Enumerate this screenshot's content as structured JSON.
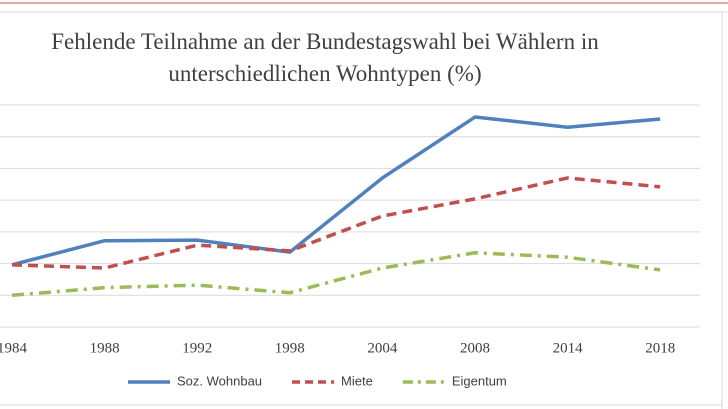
{
  "chart_data": {
    "type": "line",
    "title": "Fehlende Teilnahme an der Bundestagswahl bei Wählern in unterschiedlichen Wohntypen (%)",
    "categories": [
      "1984",
      "1988",
      "1992",
      "1998",
      "2004",
      "2008",
      "2014",
      "2018"
    ],
    "series": [
      {
        "name": "Soz. Wohnbau",
        "color": "#4f81bd",
        "dash": "solid",
        "values": [
          9.8,
          13.6,
          13.7,
          11.8,
          23.5,
          33.1,
          31.5,
          32.8
        ]
      },
      {
        "name": "Miete",
        "color": "#c0504d",
        "dash": "dashed",
        "values": [
          9.8,
          9.3,
          12.9,
          12.0,
          17.5,
          20.2,
          23.5,
          22.1
        ]
      },
      {
        "name": "Eigentum",
        "color": "#9bbb59",
        "dash": "dashdot",
        "values": [
          5.0,
          6.2,
          6.6,
          5.4,
          9.3,
          11.7,
          11.0,
          9.0
        ]
      }
    ],
    "ylim": [
      0,
      35
    ],
    "yticks": [
      0,
      5,
      10,
      15,
      20,
      25,
      30,
      35
    ],
    "grid": true,
    "legend": "bottom"
  }
}
